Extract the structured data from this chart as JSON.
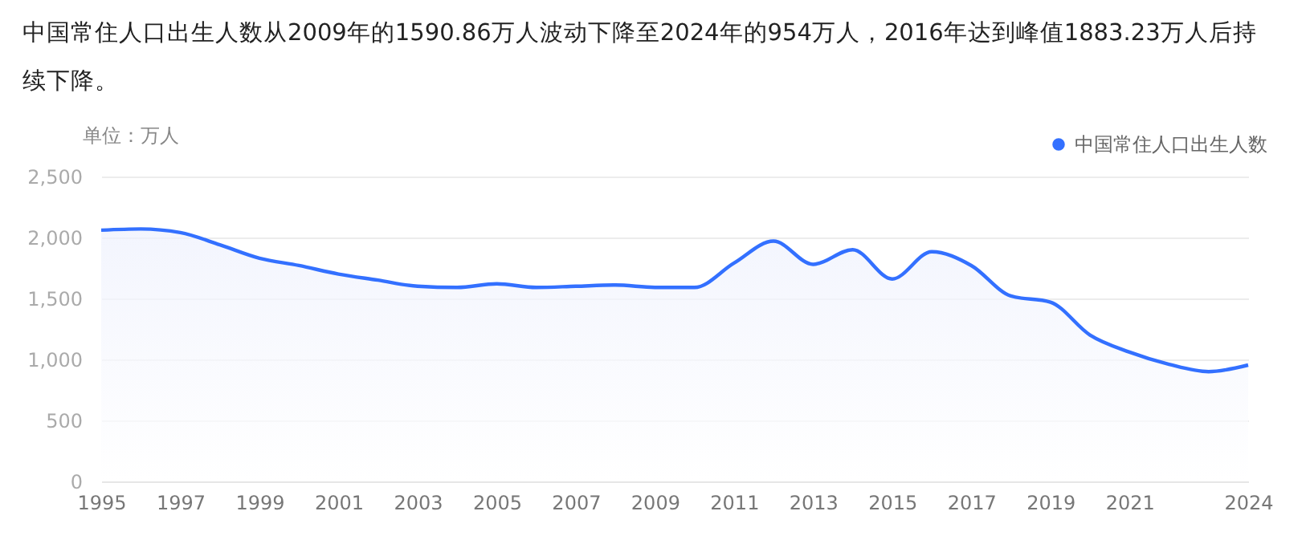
{
  "chart_data": {
    "type": "area",
    "title": "中国常住人口出生人数从2009年的1590.86万人波动下降至2024年的954万人，2016年达到峰值1883.23万人后持续下降。",
    "ylabel": "单位：万人",
    "x": [
      1995,
      1996,
      1997,
      1998,
      1999,
      2000,
      2001,
      2002,
      2003,
      2004,
      2005,
      2006,
      2007,
      2008,
      2009,
      2010,
      2011,
      2012,
      2013,
      2014,
      2015,
      2016,
      2017,
      2018,
      2019,
      2020,
      2021,
      2022,
      2023,
      2024
    ],
    "series": [
      {
        "name": "中国常住人口出生人数",
        "color": "#3370ff",
        "values": [
          2060,
          2070,
          2040,
          1940,
          1830,
          1770,
          1700,
          1650,
          1600,
          1590,
          1620,
          1590,
          1600,
          1610,
          1590.86,
          1590,
          1790,
          1970,
          1780,
          1900,
          1660,
          1883.23,
          1770,
          1520,
          1470,
          1200,
          1060,
          960,
          900,
          954
        ]
      }
    ],
    "xlim": [
      1995,
      2024
    ],
    "xticks": [
      1995,
      1997,
      1999,
      2001,
      2003,
      2005,
      2007,
      2009,
      2011,
      2013,
      2015,
      2017,
      2019,
      2021,
      2024
    ],
    "ylim": [
      0,
      2500
    ],
    "yticks": [
      0,
      500,
      {
        "value": 1000,
        "label": "1,000"
      },
      {
        "value": 1500,
        "label": "1,500"
      },
      {
        "value": 2000,
        "label": "2,000"
      },
      {
        "value": 2500,
        "label": "2,500"
      }
    ],
    "grid": "y",
    "legend": "top right"
  }
}
